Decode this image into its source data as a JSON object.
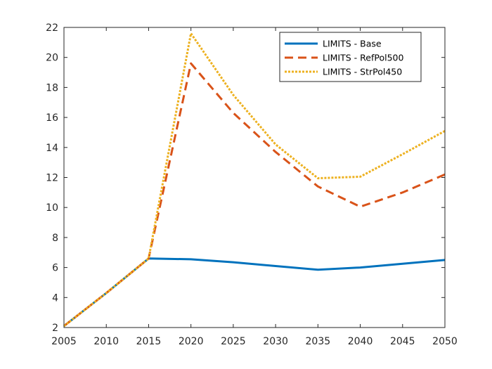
{
  "chart_data": {
    "type": "line",
    "title": "",
    "xlabel": "",
    "ylabel": "",
    "x": [
      2005,
      2010,
      2015,
      2020,
      2025,
      2030,
      2035,
      2040,
      2045,
      2050
    ],
    "xlim": [
      2005,
      2050
    ],
    "ylim": [
      2,
      22
    ],
    "xticks": [
      "2005",
      "2010",
      "2015",
      "2020",
      "2025",
      "2030",
      "2035",
      "2040",
      "2045",
      "2050"
    ],
    "yticks": [
      "2",
      "4",
      "6",
      "8",
      "10",
      "12",
      "14",
      "16",
      "18",
      "20",
      "22"
    ],
    "grid": false,
    "legend_position": "top-right",
    "series": [
      {
        "name": "LIMITS - Base",
        "style": "solid",
        "color": "#0072BD",
        "values": [
          2.1,
          4.3,
          6.6,
          6.55,
          6.35,
          6.1,
          5.85,
          6.0,
          6.25,
          6.5
        ]
      },
      {
        "name": "LIMITS - RefPol500",
        "style": "dashed",
        "color": "#D95319",
        "values": [
          2.1,
          4.3,
          6.6,
          19.6,
          16.3,
          13.7,
          11.4,
          10.05,
          11.0,
          12.2
        ]
      },
      {
        "name": "LIMITS - StrPol450",
        "style": "dotted",
        "color": "#EDB120",
        "values": [
          2.1,
          4.3,
          6.6,
          21.6,
          17.5,
          14.2,
          11.95,
          12.05,
          13.55,
          15.1
        ]
      }
    ]
  }
}
